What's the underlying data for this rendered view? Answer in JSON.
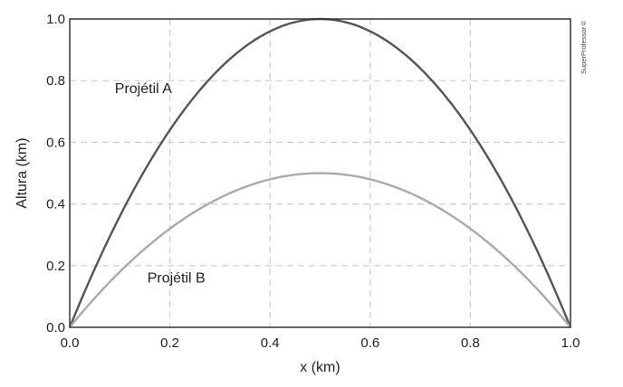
{
  "chart_data": {
    "type": "line",
    "xlabel": "x (km)",
    "ylabel": "Altura (km)",
    "xlim": [
      0,
      1
    ],
    "ylim": [
      0,
      1
    ],
    "xticks": [
      0.0,
      0.2,
      0.4,
      0.6,
      0.8,
      1.0
    ],
    "yticks": [
      0.0,
      0.2,
      0.4,
      0.6,
      0.8,
      1.0
    ],
    "xtick_labels": [
      "0.0",
      "0.2",
      "0.4",
      "0.6",
      "0.8",
      "1.0"
    ],
    "ytick_labels": [
      "0.0",
      "0.2",
      "0.4",
      "0.6",
      "0.8",
      "1.0"
    ],
    "grid": true,
    "series": [
      {
        "name": "Projétil A",
        "color": "#555555",
        "x": [
          0.0,
          0.05,
          0.1,
          0.15,
          0.2,
          0.25,
          0.3,
          0.35,
          0.4,
          0.45,
          0.5,
          0.55,
          0.6,
          0.65,
          0.7,
          0.75,
          0.8,
          0.85,
          0.9,
          0.95,
          1.0
        ],
        "y": [
          0.0,
          0.19,
          0.36,
          0.51,
          0.64,
          0.75,
          0.84,
          0.91,
          0.96,
          0.99,
          1.0,
          0.99,
          0.96,
          0.91,
          0.84,
          0.75,
          0.64,
          0.51,
          0.36,
          0.19,
          0.0
        ]
      },
      {
        "name": "Projétil B",
        "color": "#aaaaaa",
        "x": [
          0.0,
          0.05,
          0.1,
          0.15,
          0.2,
          0.25,
          0.3,
          0.35,
          0.4,
          0.45,
          0.5,
          0.55,
          0.6,
          0.65,
          0.7,
          0.75,
          0.8,
          0.85,
          0.9,
          0.95,
          1.0
        ],
        "y": [
          0.0,
          0.095,
          0.18,
          0.255,
          0.32,
          0.375,
          0.42,
          0.455,
          0.48,
          0.495,
          0.5,
          0.495,
          0.48,
          0.455,
          0.42,
          0.375,
          0.32,
          0.255,
          0.18,
          0.095,
          0.0
        ]
      }
    ]
  },
  "watermark": "SuperProfessor®"
}
